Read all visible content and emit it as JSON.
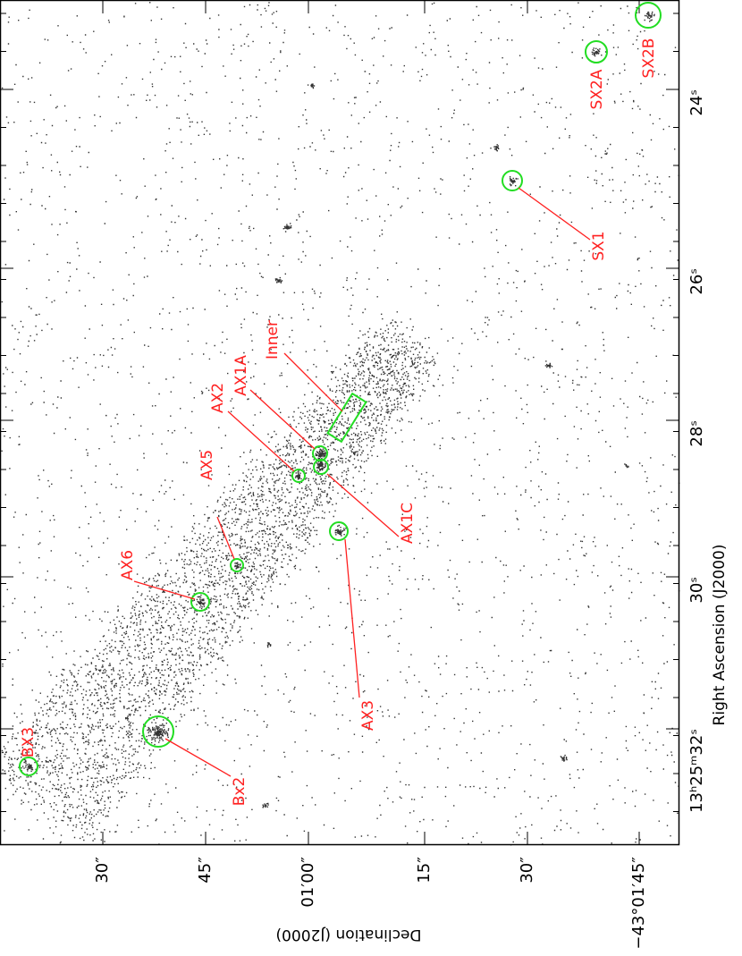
{
  "axes": {
    "dec_label": "Declination (J2000)",
    "ra_label": "Right Ascension (J2000)",
    "dec_ticks": [
      "30″",
      "45″",
      "01′00″",
      "15″",
      "30″",
      "−43°01′45″"
    ],
    "ra_ticks": [
      "13ʰ25ᵐ32ˢ",
      "30ˢ",
      "28ˢ",
      "26ˢ",
      "24ˢ"
    ]
  },
  "regions": [
    {
      "label": "BX3"
    },
    {
      "label": "Bx2"
    },
    {
      "label": "AX6"
    },
    {
      "label": "AX5"
    },
    {
      "label": "AX3"
    },
    {
      "label": "AX2"
    },
    {
      "label": "AX1A"
    },
    {
      "label": "AX1C"
    },
    {
      "label": "Inner"
    },
    {
      "label": "SX1"
    },
    {
      "label": "SX2A"
    },
    {
      "label": "SX2B"
    }
  ]
}
